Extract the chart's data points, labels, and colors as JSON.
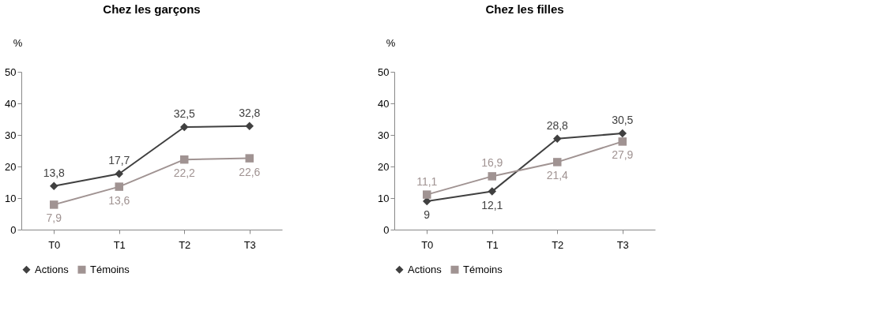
{
  "chart_data": [
    {
      "type": "line",
      "title": "Chez les garçons",
      "ylabel": "%",
      "categories": [
        "T0",
        "T1",
        "T2",
        "T3"
      ],
      "ylim": [
        0,
        50
      ],
      "yticks": [
        0,
        10,
        20,
        30,
        40,
        50
      ],
      "grid": false,
      "legend": "bottom",
      "series": [
        {
          "name": "Actions",
          "color": "#404040",
          "marker": "diamond",
          "values": [
            13.8,
            17.7,
            32.5,
            32.8
          ],
          "value_labels": [
            "13,8",
            "17,7",
            "32,5",
            "32,8"
          ]
        },
        {
          "name": "Témoins",
          "color": "#a09392",
          "marker": "square",
          "values": [
            7.9,
            13.6,
            22.2,
            22.6
          ],
          "value_labels": [
            "7,9",
            "13,6",
            "22,2",
            "22,6"
          ]
        }
      ]
    },
    {
      "type": "line",
      "title": "Chez les filles",
      "ylabel": "%",
      "categories": [
        "T0",
        "T1",
        "T2",
        "T3"
      ],
      "ylim": [
        0,
        50
      ],
      "yticks": [
        0,
        10,
        20,
        30,
        40,
        50
      ],
      "grid": false,
      "legend": "bottom",
      "series": [
        {
          "name": "Actions",
          "color": "#404040",
          "marker": "diamond",
          "values": [
            9,
            12.1,
            28.8,
            30.5
          ],
          "value_labels": [
            "9",
            "12,1",
            "28,8",
            "30,5"
          ]
        },
        {
          "name": "Témoins",
          "color": "#a09392",
          "marker": "square",
          "values": [
            11.1,
            16.9,
            21.4,
            27.9
          ],
          "value_labels": [
            "11,1",
            "16,9",
            "21,4",
            "27,9"
          ]
        }
      ]
    }
  ]
}
